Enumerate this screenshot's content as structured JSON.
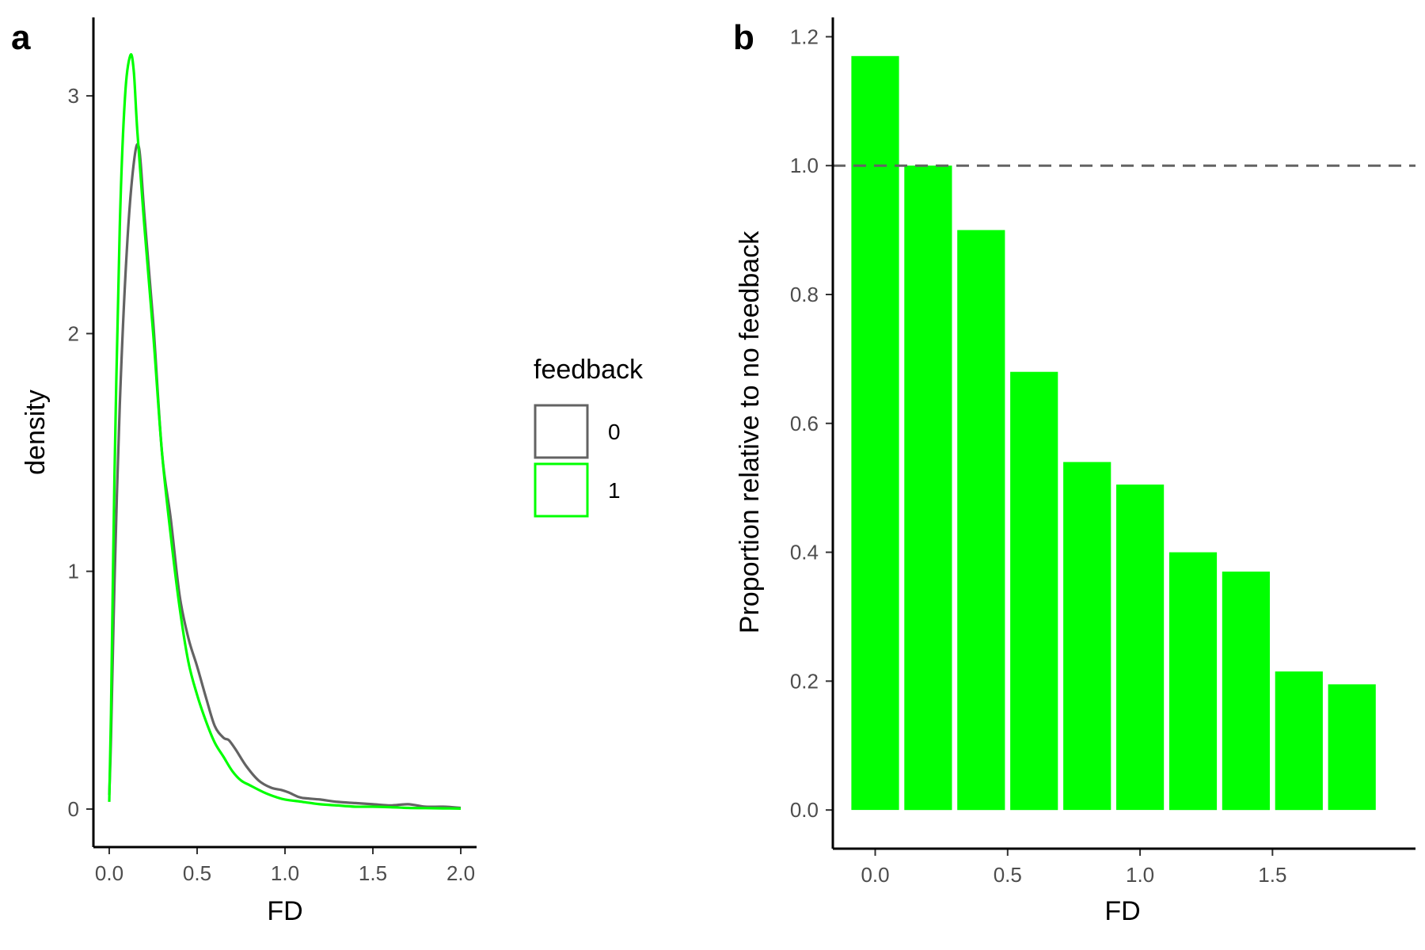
{
  "colors": {
    "no_feedback": "#636363",
    "feedback": "#00ff00",
    "reference_line": "#636363",
    "axis": "#000000"
  },
  "panel_a": {
    "tag": "a"
  },
  "panel_b": {
    "tag": "b"
  },
  "legend": {
    "title": "feedback",
    "items": [
      {
        "label": "0",
        "color": "#636363"
      },
      {
        "label": "1",
        "color": "#00ff00"
      }
    ]
  },
  "chart_data": [
    {
      "type": "line",
      "panel": "a",
      "xlabel": "FD",
      "ylabel": "density",
      "xlim": [
        -0.09,
        2.09
      ],
      "ylim": [
        -0.16,
        3.33
      ],
      "xticks": [
        "0.0",
        "0.5",
        "1.0",
        "1.5",
        "2.0"
      ],
      "yticks": [
        "0",
        "1",
        "2",
        "3"
      ],
      "grid": false,
      "series": [
        {
          "name": "0",
          "color": "#636363",
          "x": [
            0.0,
            0.01,
            0.03,
            0.06,
            0.1,
            0.14,
            0.17,
            0.2,
            0.25,
            0.3,
            0.35,
            0.4,
            0.45,
            0.5,
            0.55,
            0.6,
            0.65,
            0.68,
            0.72,
            0.78,
            0.85,
            0.92,
            0.98,
            1.02,
            1.08,
            1.12,
            1.2,
            1.3,
            1.4,
            1.5,
            1.6,
            1.7,
            1.8,
            1.9,
            2.0
          ],
          "values": [
            0.06,
            0.3,
            0.95,
            1.7,
            2.35,
            2.72,
            2.78,
            2.5,
            2.05,
            1.5,
            1.22,
            0.9,
            0.72,
            0.6,
            0.47,
            0.35,
            0.3,
            0.29,
            0.25,
            0.18,
            0.12,
            0.09,
            0.08,
            0.07,
            0.05,
            0.045,
            0.04,
            0.03,
            0.025,
            0.02,
            0.015,
            0.02,
            0.01,
            0.01,
            0.005
          ]
        },
        {
          "name": "1",
          "color": "#00ff00",
          "x": [
            0.0,
            0.01,
            0.03,
            0.06,
            0.09,
            0.12,
            0.14,
            0.16,
            0.2,
            0.25,
            0.3,
            0.35,
            0.4,
            0.45,
            0.5,
            0.55,
            0.6,
            0.65,
            0.7,
            0.75,
            0.8,
            0.88,
            0.95,
            1.0,
            1.1,
            1.2,
            1.3,
            1.4,
            1.5,
            1.6,
            1.7,
            1.8,
            1.9,
            2.0
          ],
          "values": [
            0.03,
            0.4,
            1.4,
            2.45,
            3.0,
            3.17,
            3.1,
            2.85,
            2.45,
            2.0,
            1.5,
            1.15,
            0.85,
            0.62,
            0.48,
            0.37,
            0.28,
            0.22,
            0.16,
            0.12,
            0.1,
            0.07,
            0.05,
            0.04,
            0.03,
            0.02,
            0.015,
            0.01,
            0.01,
            0.008,
            0.005,
            0.004,
            0.003,
            0.002
          ]
        }
      ]
    },
    {
      "type": "bar",
      "panel": "b",
      "xlabel": "FD",
      "ylabel": "Proportion relative to no feedback",
      "xlim": [
        -0.16,
        2.04
      ],
      "ylim": [
        -0.06,
        1.23
      ],
      "xticks": [
        "0.0",
        "0.5",
        "1.0",
        "1.5"
      ],
      "yticks": [
        "0.0",
        "0.2",
        "0.4",
        "0.6",
        "0.8",
        "1.0",
        "1.2"
      ],
      "grid": false,
      "reference_line": 1.0,
      "categories": [
        0.0,
        0.2,
        0.4,
        0.6,
        0.8,
        1.0,
        1.2,
        1.4,
        1.6,
        1.8
      ],
      "values": [
        1.17,
        1.0,
        0.9,
        0.68,
        0.54,
        0.505,
        0.4,
        0.37,
        0.215,
        0.195
      ],
      "color": "#00ff00"
    }
  ]
}
